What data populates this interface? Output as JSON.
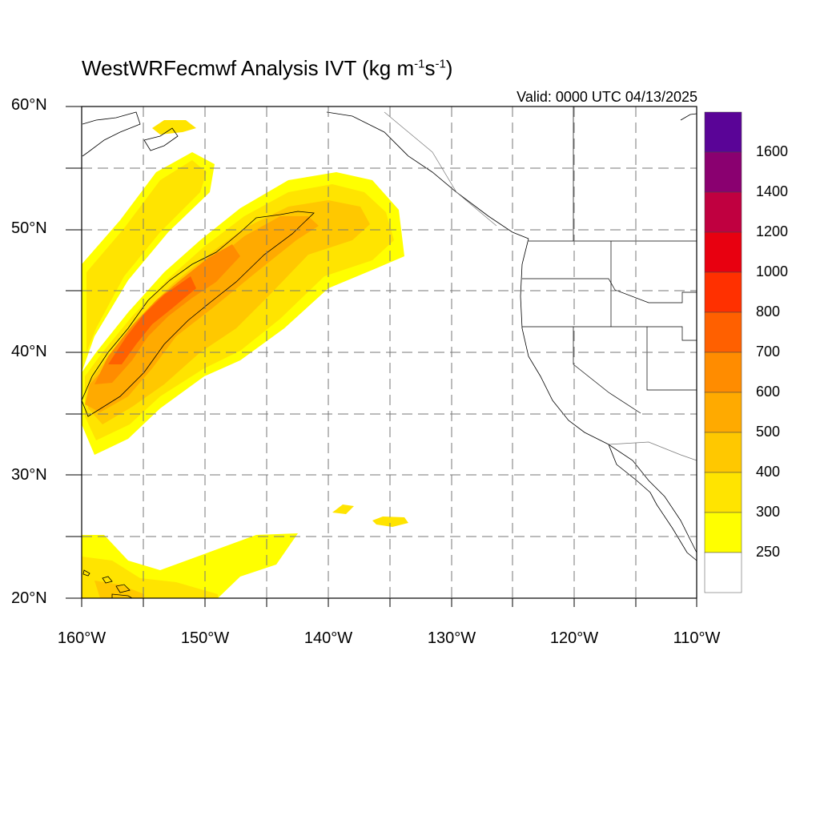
{
  "title": {
    "text": "WestWRFecmwf Analysis IVT (kg m",
    "exp1": "-1",
    "mid": "s",
    "exp2": "-1",
    "close": ")"
  },
  "valid": "Valid: 0000 UTC 04/13/2025",
  "lat_labels": [
    "60°N",
    "50°N",
    "40°N",
    "30°N",
    "20°N"
  ],
  "lon_labels": [
    "160°W",
    "150°W",
    "140°W",
    "130°W",
    "120°W",
    "110°W"
  ],
  "colorbar": {
    "labels": [
      "1600",
      "1400",
      "1200",
      "1000",
      "800",
      "700",
      "600",
      "500",
      "400",
      "300",
      "250"
    ],
    "colors": [
      "#5a0497",
      "#8a0070",
      "#c00040",
      "#e80010",
      "#ff3000",
      "#ff6000",
      "#ff8c00",
      "#ffaa00",
      "#ffc800",
      "#ffe400",
      "#ffff00",
      "#ffffff"
    ]
  }
}
